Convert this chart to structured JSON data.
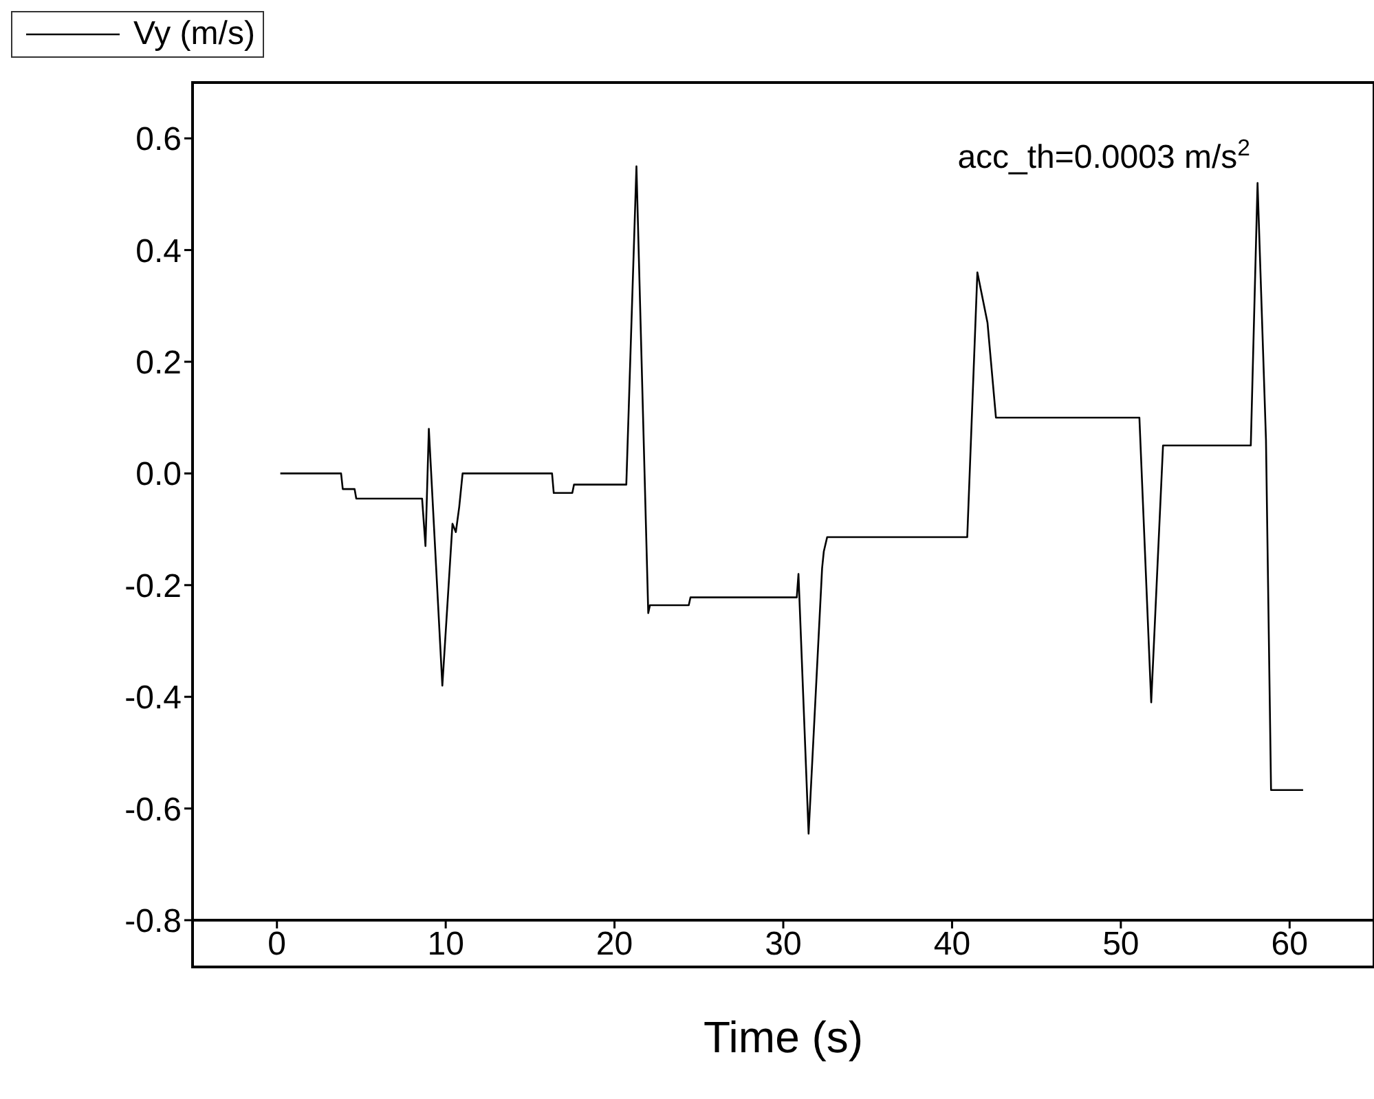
{
  "chart_data": {
    "type": "line",
    "xlabel": "Time (s)",
    "annotations": [
      "acc_th=0.0003 m/s$^{2}$"
    ],
    "xlim": [
      -5,
      65
    ],
    "xticks": [
      0,
      10,
      20,
      30,
      40,
      50,
      60
    ],
    "ylim": [
      -0.8,
      0.7
    ],
    "yticks": [
      -0.8,
      -0.6,
      -0.4,
      -0.2,
      {
        "value": 0,
        "label": "0.0"
      },
      0.2,
      0.4,
      0.6
    ],
    "grid": false,
    "legend": "top left",
    "marker": "none",
    "line_style": "solid",
    "series": [
      {
        "name": "Vy (m/s)",
        "color": "#000000",
        "x": [
          0.2,
          3.8,
          3.9,
          4.6,
          4.7,
          8.6,
          8.8,
          9.0,
          9.8,
          10.4,
          10.6,
          10.8,
          11.0,
          16.3,
          16.4,
          17.5,
          17.6,
          20.7,
          21.3,
          22.0,
          22.1,
          24.4,
          24.5,
          30.8,
          30.9,
          31.5,
          32.3,
          32.4,
          32.6,
          40.9,
          41.5,
          42.1,
          42.6,
          51.1,
          51.8,
          52.5,
          57.7,
          58.1,
          58.6,
          58.9,
          60.8
        ],
        "values": [
          0.0,
          0.0,
          -0.028,
          -0.028,
          -0.045,
          -0.045,
          -0.13,
          0.08,
          -0.38,
          -0.09,
          -0.105,
          -0.06,
          0.0,
          0.0,
          -0.035,
          -0.035,
          -0.02,
          -0.02,
          0.55,
          -0.25,
          -0.236,
          -0.236,
          -0.222,
          -0.222,
          -0.18,
          -0.645,
          -0.17,
          -0.14,
          -0.114,
          -0.114,
          0.36,
          0.27,
          0.1,
          0.1,
          -0.41,
          0.05,
          0.05,
          0.52,
          0.06,
          -0.567,
          -0.567
        ]
      }
    ]
  }
}
